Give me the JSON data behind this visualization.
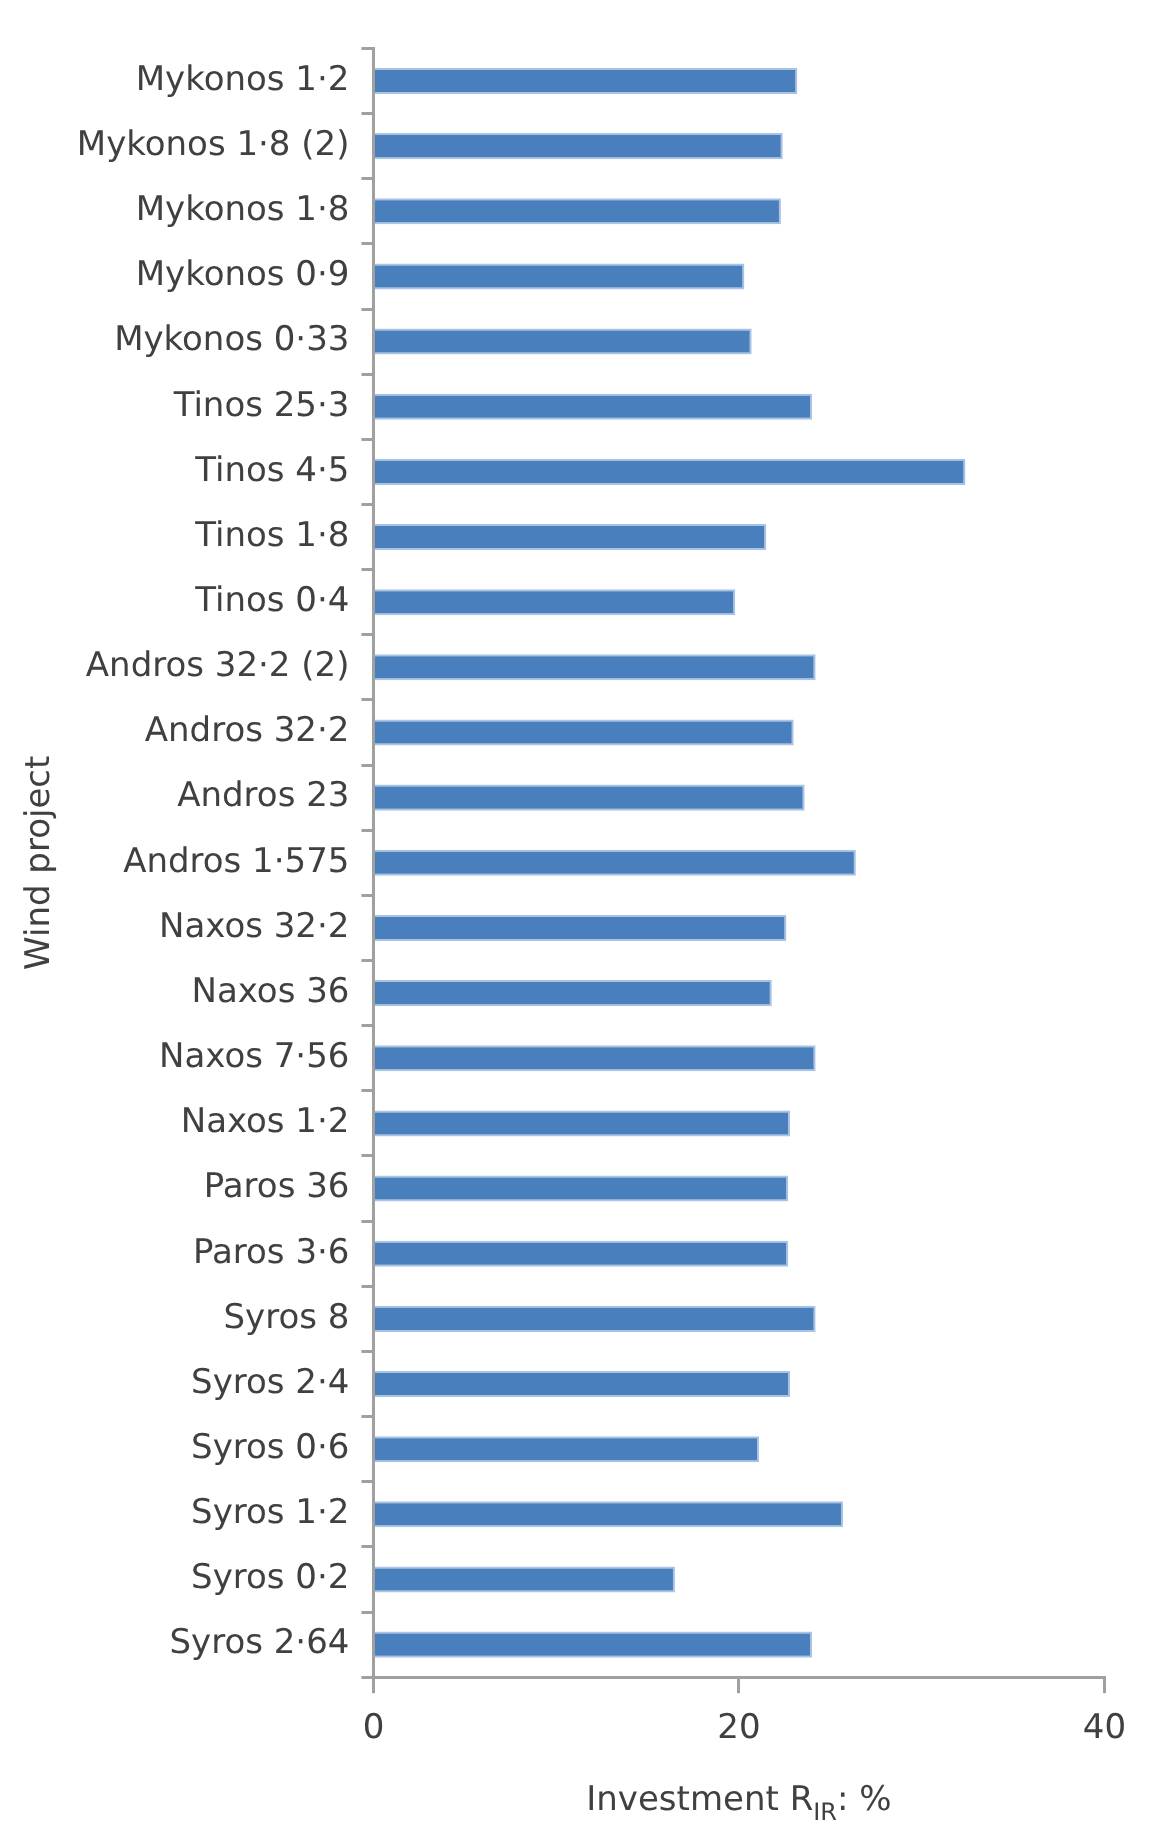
{
  "chart_data": {
    "type": "bar",
    "orientation": "horizontal",
    "xlabel": "Investment R$_{IR}$: %",
    "ylabel": "Wind project",
    "categories": [
      "Mykonos 1·2",
      "Mykonos 1·8 (2)",
      "Mykonos 1·8",
      "Mykonos 0·9",
      "Mykonos 0·33",
      "Tinos 25·3",
      "Tinos 4·5",
      "Tinos 1·8",
      "Tinos 0·4",
      "Andros 32·2 (2)",
      "Andros 32·2",
      "Andros 23",
      "Andros 1·575",
      "Naxos 32·2",
      "Naxos 36",
      "Naxos 7·56",
      "Naxos 1·2",
      "Paros 36",
      "Paros 3·6",
      "Syros 8",
      "Syros 2·4",
      "Syros 0·6",
      "Syros 1·2",
      "Syros 0·2",
      "Syros 2·64"
    ],
    "values": [
      23.2,
      22.4,
      22.3,
      20.3,
      20.7,
      24.0,
      32.4,
      21.5,
      19.8,
      24.2,
      23.0,
      23.6,
      26.4,
      22.6,
      21.8,
      24.2,
      22.8,
      22.7,
      22.7,
      24.2,
      22.8,
      21.1,
      25.7,
      16.5,
      24.0
    ],
    "color": "#4a7fbd",
    "xlim": [
      0,
      40
    ],
    "xticks": [
      0,
      20,
      40
    ],
    "grid": false,
    "legend": false
  }
}
